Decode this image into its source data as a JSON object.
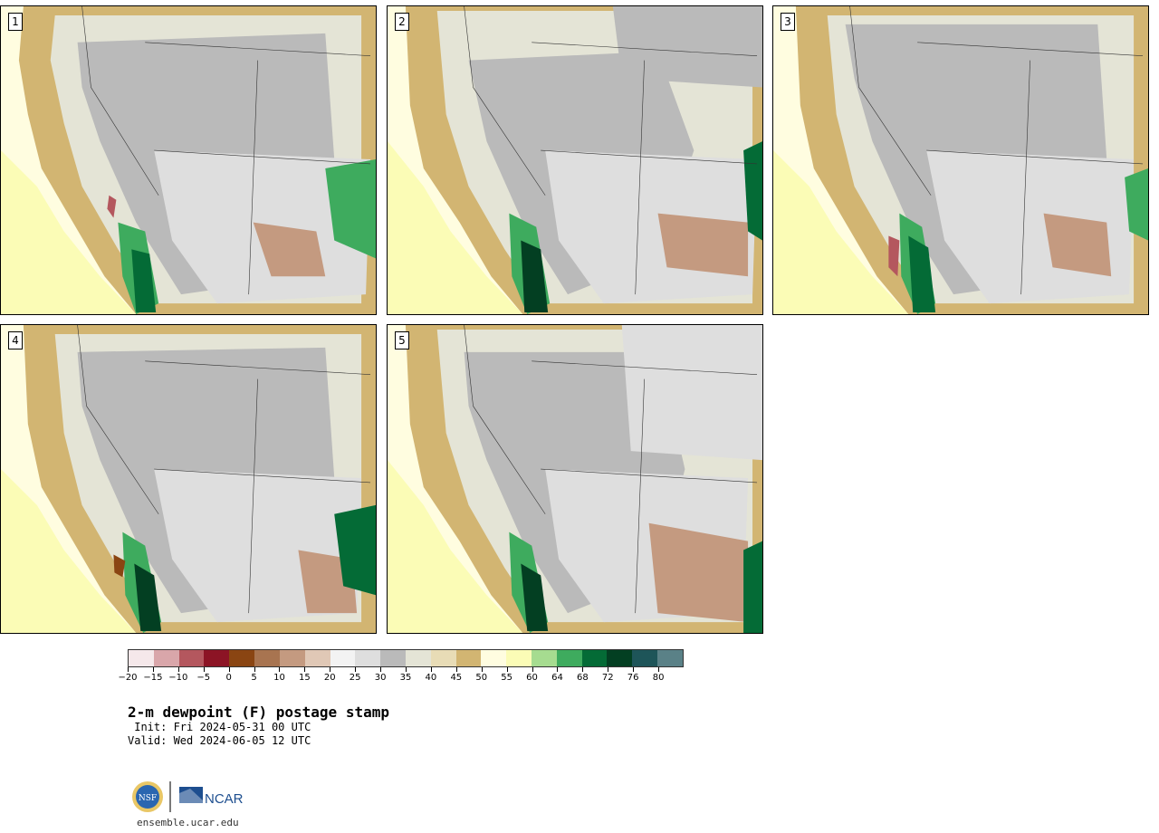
{
  "stamps": [
    {
      "label": "1"
    },
    {
      "label": "2"
    },
    {
      "label": "3"
    },
    {
      "label": "4"
    },
    {
      "label": "5"
    }
  ],
  "colorbar": {
    "colors": [
      "#f5e8ea",
      "#d9a6aa",
      "#b4575e",
      "#8c1425",
      "#8a4512",
      "#a87450",
      "#c49a80",
      "#e0c8b6",
      "#f3f3f3",
      "#dedede",
      "#bababa",
      "#e4e4d6",
      "#e8dcb6",
      "#d2b572",
      "#fffde0",
      "#fbfcb6",
      "#a6dc90",
      "#3eab5e",
      "#046b36",
      "#033f22",
      "#1e5559",
      "#5a8187"
    ],
    "ticks": [
      "−20",
      "−15",
      "−10",
      "−5",
      "0",
      "5",
      "10",
      "15",
      "20",
      "25",
      "30",
      "35",
      "40",
      "45",
      "50",
      "55",
      "60",
      "64",
      "68",
      "72",
      "76",
      "80"
    ]
  },
  "text": {
    "title": "2-m dewpoint (F) postage stamp",
    "init": " Init: Fri 2024-05-31 00 UTC",
    "valid": "Valid: Wed 2024-06-05 12 UTC",
    "site": "ensemble.ucar.edu"
  },
  "logos": {
    "nsf": "NSF",
    "ncar": "NCAR"
  }
}
